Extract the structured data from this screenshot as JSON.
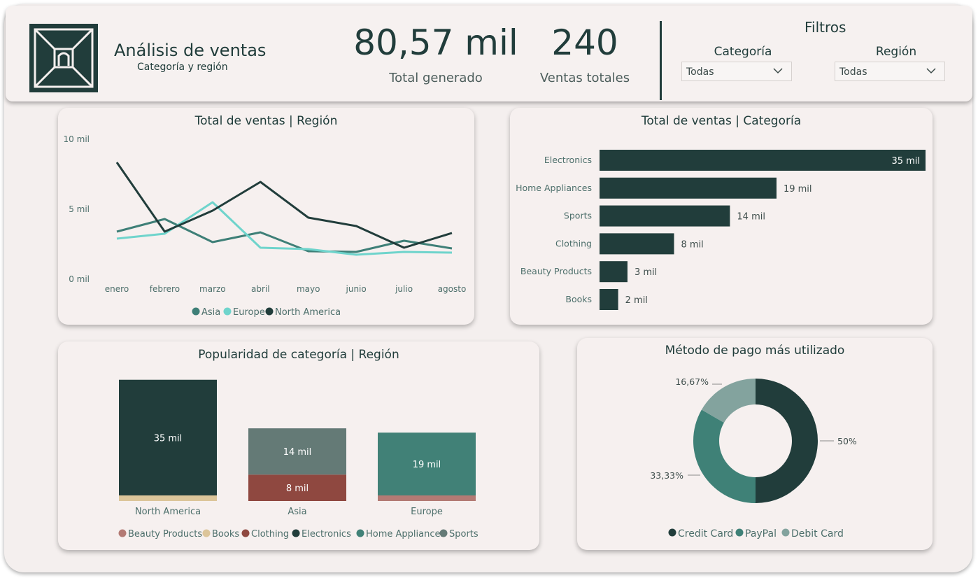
{
  "header": {
    "title": "Análisis de ventas",
    "subtitle": "Categoría y región",
    "kpis": [
      {
        "value": "80,57 mil",
        "label": "Total generado"
      },
      {
        "value": "240",
        "label": "Ventas totales"
      }
    ],
    "filters": {
      "title": "Filtros",
      "categoria": {
        "label": "Categoría",
        "value": "Todas"
      },
      "region": {
        "label": "Región",
        "value": "Todas"
      }
    }
  },
  "colors": {
    "dark": "#213d3b",
    "asia": "#3e7f77",
    "europe": "#6fd4cc",
    "beauty": "#b37a74",
    "books": "#dcc59a",
    "clothing": "#8f4840",
    "electronics": "#213d3b",
    "home": "#418177",
    "sports": "#647a76",
    "credit": "#213d3b",
    "paypal": "#3f8177",
    "debit": "#83a39e"
  },
  "chart_data": [
    {
      "type": "line",
      "title": "Total de ventas | Región",
      "x": [
        "enero",
        "febrero",
        "marzo",
        "abril",
        "mayo",
        "junio",
        "julio",
        "agosto"
      ],
      "yticks": [
        "0 mil",
        "5 mil",
        "10 mil"
      ],
      "ylim": [
        0,
        10000
      ],
      "series": [
        {
          "name": "Asia",
          "values": [
            3400,
            4300,
            2650,
            3350,
            2000,
            1950,
            2750,
            2200
          ]
        },
        {
          "name": "Europe",
          "values": [
            2900,
            3250,
            5500,
            2250,
            2150,
            1750,
            1950,
            1900
          ]
        },
        {
          "name": "North America",
          "values": [
            8350,
            3400,
            4900,
            6950,
            4400,
            3800,
            2250,
            3300
          ]
        }
      ],
      "legend": "bottom"
    },
    {
      "type": "bar",
      "orientation": "horizontal",
      "title": "Total de ventas | Categoría",
      "categories": [
        "Electronics",
        "Home Appliances",
        "Sports",
        "Clothing",
        "Beauty Products",
        "Books"
      ],
      "values": [
        35000,
        19000,
        14000,
        8000,
        3000,
        2000
      ],
      "labels": [
        "35 mil",
        "19 mil",
        "14 mil",
        "8 mil",
        "3 mil",
        "2 mil"
      ]
    },
    {
      "type": "bar",
      "stacked": true,
      "title": "Popularidad de categoría | Región",
      "categories": [
        "North America",
        "Asia",
        "Europe"
      ],
      "series": [
        {
          "name": "Beauty Products",
          "values": [
            0,
            0,
            1000
          ]
        },
        {
          "name": "Books",
          "values": [
            700,
            0,
            0
          ]
        },
        {
          "name": "Clothing",
          "values": [
            0,
            8000,
            0
          ]
        },
        {
          "name": "Electronics",
          "values": [
            35000,
            0,
            0
          ]
        },
        {
          "name": "Home Appliances",
          "values": [
            0,
            0,
            19000
          ]
        },
        {
          "name": "Sports",
          "values": [
            0,
            14000,
            0
          ]
        }
      ],
      "data_labels": [
        "35 mil",
        "14 mil",
        "8 mil",
        "19 mil"
      ],
      "legend": "bottom"
    },
    {
      "type": "pie",
      "donut": true,
      "title": "Método de pago más utilizado",
      "categories": [
        "Credit Card",
        "PayPal",
        "Debit Card"
      ],
      "values": [
        50,
        33.33,
        16.67
      ],
      "labels": [
        "50%",
        "33,33%",
        "16,67%"
      ],
      "legend": "bottom"
    }
  ]
}
